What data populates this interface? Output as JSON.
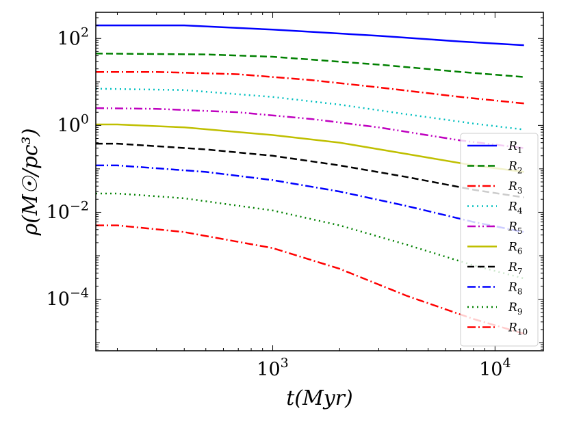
{
  "chart_data": {
    "type": "line",
    "title": "",
    "xlabel": "t(Myr)",
    "ylabel": "ρ(M☉/pc³)",
    "xscale": "log",
    "yscale": "log",
    "xlim": [
      160,
      16500
    ],
    "ylim": [
      6.5e-06,
      400
    ],
    "x_ticks": [
      {
        "value": 1000,
        "base": "10",
        "exp": "3"
      },
      {
        "value": 10000,
        "base": "10",
        "exp": "4"
      }
    ],
    "y_ticks": [
      {
        "value": 100,
        "base": "10",
        "exp": "2"
      },
      {
        "value": 1,
        "base": "10",
        "exp": "0"
      },
      {
        "value": 0.01,
        "base": "10",
        "exp": "−2"
      },
      {
        "value": 0.0001,
        "base": "10",
        "exp": "−4"
      }
    ],
    "legend_position": "right",
    "series": [
      {
        "name": "R",
        "sub": "1",
        "color": "#0000ff",
        "dash": "solid",
        "points": [
          [
            160,
            200
          ],
          [
            400,
            200
          ],
          [
            1000,
            160
          ],
          [
            3000,
            115
          ],
          [
            7000,
            85
          ],
          [
            13500,
            70
          ]
        ]
      },
      {
        "name": "R",
        "sub": "2",
        "color": "#008000",
        "dash": "dash",
        "points": [
          [
            160,
            45
          ],
          [
            500,
            43
          ],
          [
            1000,
            38
          ],
          [
            3000,
            25
          ],
          [
            7000,
            17
          ],
          [
            13500,
            13
          ]
        ]
      },
      {
        "name": "R",
        "sub": "3",
        "color": "#ff0000",
        "dash": "dashdot",
        "points": [
          [
            160,
            17
          ],
          [
            300,
            17
          ],
          [
            700,
            15
          ],
          [
            1500,
            11
          ],
          [
            3000,
            7.5
          ],
          [
            7000,
            4.5
          ],
          [
            13500,
            3.2
          ]
        ]
      },
      {
        "name": "R",
        "sub": "4",
        "color": "#00bfbf",
        "dash": "dot",
        "points": [
          [
            160,
            7
          ],
          [
            400,
            6.5
          ],
          [
            1000,
            4.5
          ],
          [
            2000,
            3
          ],
          [
            4000,
            1.8
          ],
          [
            8000,
            1.1
          ],
          [
            13500,
            0.8
          ]
        ]
      },
      {
        "name": "R",
        "sub": "5",
        "color": "#bf00bf",
        "dash": "dashdotdot",
        "points": [
          [
            160,
            2.5
          ],
          [
            300,
            2.4
          ],
          [
            700,
            2
          ],
          [
            1500,
            1.4
          ],
          [
            3000,
            0.9
          ],
          [
            7000,
            0.45
          ],
          [
            13500,
            0.3
          ]
        ]
      },
      {
        "name": "R",
        "sub": "6",
        "color": "#bfbf00",
        "dash": "solid",
        "points": [
          [
            160,
            1.05
          ],
          [
            200,
            1.05
          ],
          [
            400,
            0.9
          ],
          [
            1000,
            0.6
          ],
          [
            2000,
            0.4
          ],
          [
            4000,
            0.22
          ],
          [
            8000,
            0.12
          ],
          [
            13500,
            0.085
          ]
        ]
      },
      {
        "name": "R",
        "sub": "7",
        "color": "#000000",
        "dash": "dash",
        "points": [
          [
            160,
            0.38
          ],
          [
            200,
            0.38
          ],
          [
            500,
            0.28
          ],
          [
            1000,
            0.2
          ],
          [
            2000,
            0.12
          ],
          [
            4000,
            0.065
          ],
          [
            8000,
            0.033
          ],
          [
            13500,
            0.022
          ]
        ]
      },
      {
        "name": "R",
        "sub": "8",
        "color": "#0000ff",
        "dash": "dashdot",
        "points": [
          [
            160,
            0.12
          ],
          [
            200,
            0.12
          ],
          [
            500,
            0.085
          ],
          [
            1000,
            0.055
          ],
          [
            2000,
            0.03
          ],
          [
            4000,
            0.014
          ],
          [
            8000,
            0.006
          ],
          [
            13500,
            0.0035
          ]
        ]
      },
      {
        "name": "R",
        "sub": "9",
        "color": "#008000",
        "dash": "dot",
        "points": [
          [
            160,
            0.027
          ],
          [
            200,
            0.027
          ],
          [
            400,
            0.021
          ],
          [
            1000,
            0.011
          ],
          [
            2000,
            0.005
          ],
          [
            4000,
            0.0018
          ],
          [
            8000,
            0.0006
          ],
          [
            13500,
            0.0003
          ]
        ]
      },
      {
        "name": "R",
        "sub": "10",
        "color": "#ff0000",
        "dash": "dashdot",
        "points": [
          [
            160,
            0.005
          ],
          [
            200,
            0.005
          ],
          [
            400,
            0.0035
          ],
          [
            1000,
            0.0015
          ],
          [
            2000,
            0.0005
          ],
          [
            4000,
            0.00012
          ],
          [
            8000,
            3.5e-05
          ],
          [
            13500,
            1.6e-05
          ]
        ]
      }
    ]
  }
}
